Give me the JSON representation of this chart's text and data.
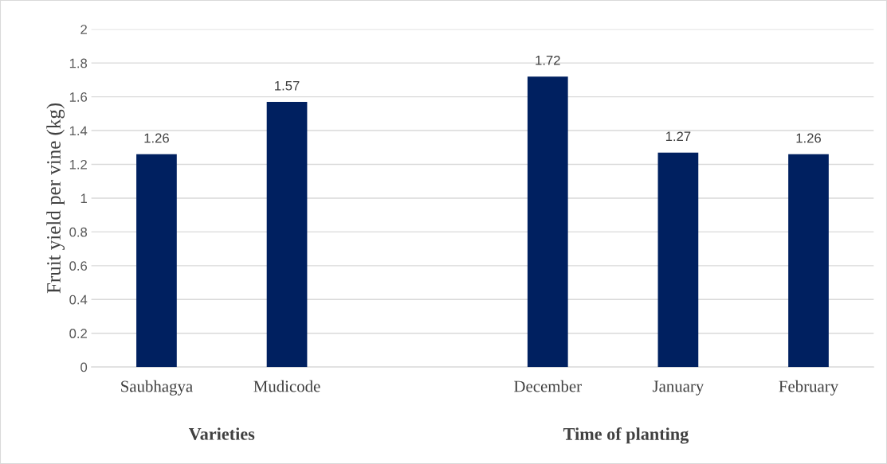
{
  "chart_data": {
    "type": "bar",
    "ylabel": "Fruit yield per vine (kg)",
    "categories": [
      "Saubhagya",
      "Mudicode",
      null,
      "December",
      "January",
      "February"
    ],
    "values": [
      1.26,
      1.57,
      null,
      1.72,
      1.27,
      1.26
    ],
    "color": "#002060",
    "ylim": [
      0,
      2
    ],
    "yticks": [
      0,
      0.2,
      0.4,
      0.6,
      0.8,
      1,
      1.2,
      1.4,
      1.6,
      1.8,
      2
    ],
    "grid": "y",
    "data_labels": true,
    "legend": false,
    "annotations": [
      "Varieties",
      "Time of planting"
    ]
  }
}
